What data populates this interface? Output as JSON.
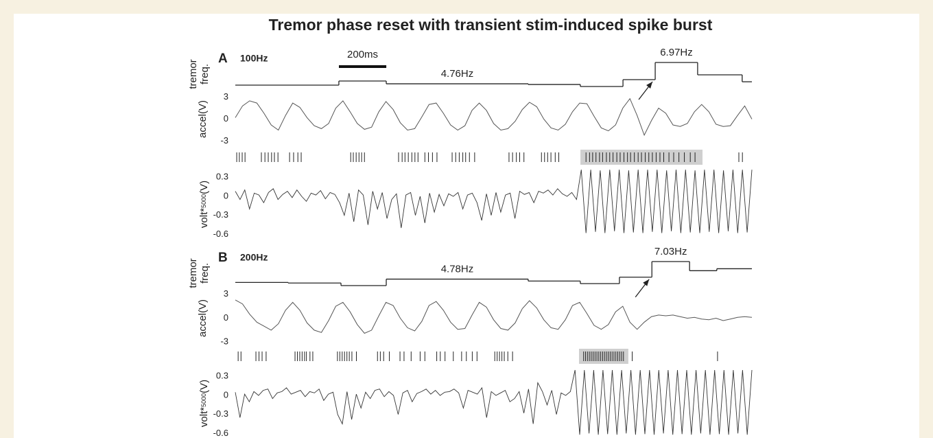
{
  "chart_data": [
    {
      "type": "line",
      "title": "Tremor phase reset with transient stim-induced spike burst",
      "panel_label": "A",
      "stim_label": "100Hz",
      "scale_bar": {
        "value": 200,
        "label": "200ms"
      },
      "xlim": [
        0,
        2180
      ],
      "tremor": {
        "ylabel": [
          "tremor",
          "freq."
        ],
        "x": [
          0,
          437,
          637,
          1236,
          1456,
          1636,
          1772,
          1951,
          2139
        ],
        "values": [
          4.62,
          5.05,
          4.76,
          4.69,
          4.48,
          5.19,
          6.97,
          5.69,
          4.97
        ],
        "value_labels": [
          null,
          null,
          "4.76Hz",
          null,
          null,
          null,
          "6.97Hz",
          null,
          null
        ]
      },
      "accel": {
        "ylabel": "accel(V)",
        "ylim": [
          -3.8,
          3.8
        ],
        "yticks": [
          3,
          0,
          -3
        ],
        "values": [
          0.2,
          1.8,
          2.5,
          2.2,
          0.8,
          -0.8,
          -1.5,
          0.5,
          2.2,
          1.6,
          0.2,
          -0.9,
          -1.3,
          -0.6,
          1.5,
          2.5,
          1.0,
          -0.6,
          -1.4,
          -1.1,
          1.0,
          2.4,
          1.3,
          -0.5,
          -1.5,
          -1.3,
          0.3,
          2.0,
          2.2,
          0.8,
          -0.8,
          -1.5,
          -0.9,
          1.2,
          2.2,
          1.2,
          -0.6,
          -1.5,
          -1.3,
          -0.3,
          1.3,
          2.3,
          1.7,
          0.0,
          -1.2,
          -1.5,
          -0.7,
          1.0,
          2.2,
          2.1,
          0.4,
          -1.2,
          -1.6,
          -0.8,
          1.5,
          2.8,
          0.5,
          -2.2,
          -0.2,
          1.5,
          0.8,
          -0.8,
          -1.0,
          -0.6,
          1.0,
          2.0,
          1.0,
          -0.7,
          -1.0,
          -0.9,
          0.5,
          1.8,
          0.0
        ]
      },
      "spikes": {
        "times": [
          6,
          17,
          29,
          41,
          110,
          125,
          139,
          153,
          165,
          180,
          229,
          246,
          264,
          278,
          487,
          498,
          510,
          522,
          533,
          545,
          689,
          704,
          716,
          730,
          745,
          758,
          771,
          800,
          815,
          832,
          851,
          915,
          930,
          945,
          960,
          972,
          988,
          1010,
          1155,
          1170,
          1186,
          1200,
          1218,
          1292,
          1305,
          1318,
          1332,
          1350,
          1365,
          1480,
          1495,
          1508,
          1522,
          1537,
          1550,
          1566,
          1580,
          1594,
          1610,
          1624,
          1640,
          1655,
          1668,
          1684,
          1700,
          1714,
          1730,
          1745,
          1760,
          1776,
          1792,
          1808,
          1830,
          1850,
          1872,
          1895,
          1920,
          1940,
          2125,
          2140
        ],
        "highlight": [
          1468,
          1960
        ]
      },
      "volt": {
        "ylabel_parts": [
          "volt*",
          "5000",
          "(V)"
        ],
        "ylim": [
          -0.65,
          0.4
        ],
        "yticks": [
          0.3,
          0,
          -0.3,
          -0.6
        ],
        "values": [
          0.08,
          -0.05,
          0.1,
          -0.2,
          0.05,
          0.02,
          -0.1,
          0.06,
          0.12,
          -0.05,
          0.03,
          0.08,
          -0.02,
          0.1,
          0.0,
          -0.08,
          0.05,
          0.02,
          0.09,
          -0.04,
          0.06,
          0.03,
          -0.1,
          -0.3,
          0.05,
          -0.4,
          0.1,
          0.02,
          -0.45,
          0.08,
          -0.2,
          0.06,
          -0.35,
          -0.05,
          0.04,
          -0.5,
          0.02,
          0.06,
          -0.3,
          0.0,
          -0.42,
          0.05,
          -0.25,
          0.03,
          -0.15,
          0.04,
          0.0,
          0.06,
          -0.2,
          0.02,
          0.05,
          -0.1,
          -0.38,
          0.04,
          -0.3,
          0.06,
          -0.25,
          0.02,
          0.05,
          -0.35,
          0.08,
          0.03,
          0.06,
          -0.1,
          0.08,
          0.05,
          0.1,
          0.02,
          0.12,
          0.04,
          0.0,
          0.06,
          -0.05,
          0.42,
          -0.58,
          0.42,
          -0.56,
          0.41,
          -0.58,
          0.42,
          -0.55,
          0.42,
          -0.58,
          0.41,
          -0.57,
          0.42,
          -0.58,
          0.42,
          -0.56,
          0.42,
          -0.58,
          0.41,
          -0.55,
          0.42,
          -0.58,
          0.42,
          -0.57,
          0.41,
          -0.58,
          0.42,
          -0.56,
          0.42,
          -0.58,
          0.41,
          -0.55,
          0.42,
          -0.58,
          0.42,
          -0.57,
          0.42
        ]
      }
    },
    {
      "type": "line",
      "panel_label": "B",
      "stim_label": "200Hz",
      "xlim": [
        0,
        2180
      ],
      "tremor": {
        "ylabel": [
          "tremor",
          "freq."
        ],
        "x": [
          0,
          223,
          446,
          637,
          1236,
          1456,
          1621,
          1758,
          1917,
          2032
        ],
        "values": [
          4.36,
          4.28,
          3.95,
          4.78,
          4.53,
          4.2,
          5.03,
          7.03,
          5.86,
          6.11
        ],
        "value_labels": [
          null,
          null,
          null,
          "4.78Hz",
          null,
          null,
          null,
          "7.03Hz",
          null,
          null
        ]
      },
      "accel": {
        "ylabel": "accel(V)",
        "ylim": [
          -3.5,
          3.5
        ],
        "yticks": [
          3,
          0,
          -3
        ],
        "values": [
          2.3,
          1.8,
          0.5,
          -0.5,
          -1.0,
          -1.5,
          -0.7,
          1.0,
          2.0,
          1.0,
          -0.6,
          -1.5,
          -1.8,
          -0.3,
          1.5,
          2.0,
          0.8,
          -0.8,
          -1.9,
          -1.5,
          0.3,
          2.0,
          1.6,
          0.0,
          -1.2,
          -1.6,
          -0.4,
          1.6,
          2.1,
          1.0,
          -0.5,
          -1.4,
          -1.3,
          0.4,
          2.0,
          1.4,
          -0.2,
          -1.3,
          -1.5,
          -0.6,
          1.2,
          2.2,
          1.3,
          -0.2,
          -1.2,
          -1.4,
          -0.2,
          1.6,
          2.0,
          0.6,
          -0.9,
          -1.4,
          -0.8,
          0.8,
          1.5,
          -0.5,
          -1.4,
          -0.5,
          0.2,
          0.4,
          0.3,
          0.4,
          0.2,
          0.0,
          0.1,
          -0.1,
          -0.2,
          0.0,
          -0.3,
          -0.1,
          0.1,
          0.2,
          0.1
        ]
      },
      "spikes": {
        "times": [
          12,
          24,
          87,
          100,
          113,
          130,
          252,
          262,
          272,
          282,
          292,
          300,
          315,
          327,
          431,
          441,
          451,
          461,
          471,
          481,
          492,
          511,
          600,
          612,
          626,
          650,
          695,
          712,
          742,
          780,
          800,
          850,
          865,
          885,
          920,
          955,
          975,
          1000,
          1020,
          1095,
          1105,
          1115,
          1125,
          1135,
          1150,
          1170,
          1470,
          1478,
          1486,
          1494,
          1502,
          1510,
          1518,
          1526,
          1534,
          1542,
          1550,
          1558,
          1566,
          1574,
          1582,
          1590,
          1598,
          1606,
          1614,
          1622,
          1630,
          1638,
          1675,
          2035
        ],
        "highlight": [
          1462,
          1647
        ]
      },
      "volt": {
        "ylabel_parts": [
          "volt*",
          "5000",
          "(V)"
        ],
        "ylim": [
          -0.65,
          0.4
        ],
        "yticks": [
          0.3,
          0,
          -0.3,
          -0.6
        ],
        "values": [
          0.05,
          -0.35,
          0.02,
          -0.1,
          0.06,
          0.0,
          0.08,
          0.1,
          -0.05,
          0.04,
          0.06,
          0.12,
          0.02,
          0.05,
          0.08,
          -0.02,
          0.06,
          0.04,
          0.1,
          -0.08,
          0.02,
          0.05,
          -0.3,
          -0.45,
          0.06,
          -0.38,
          0.02,
          -0.2,
          0.05,
          -0.05,
          0.08,
          0.1,
          -0.02,
          0.06,
          0.0,
          -0.3,
          0.04,
          0.08,
          -0.1,
          0.03,
          0.06,
          0.1,
          0.02,
          0.08,
          0.0,
          0.05,
          0.06,
          0.1,
          0.04,
          -0.2,
          0.08,
          0.05,
          0.02,
          0.12,
          -0.35,
          0.06,
          0.0,
          0.04,
          0.08,
          -0.1,
          -0.05,
          0.06,
          -0.28,
          0.1,
          -0.45,
          0.2,
          0.06,
          -0.15,
          0.08,
          -0.3,
          0.04,
          0.0,
          0.06,
          0.4,
          -0.62,
          0.4,
          -0.6,
          0.4,
          -0.62,
          0.4,
          -0.61,
          0.4,
          -0.62,
          0.4,
          -0.6,
          0.4,
          -0.62,
          0.4,
          -0.61,
          0.4,
          -0.62,
          0.4,
          -0.6,
          0.4,
          -0.62,
          0.4,
          -0.61,
          0.4,
          -0.62,
          0.4,
          -0.6,
          0.4,
          -0.62,
          0.4,
          -0.61,
          0.4,
          -0.62,
          0.4,
          -0.6,
          0.4,
          -0.62,
          0.4
        ]
      }
    }
  ]
}
